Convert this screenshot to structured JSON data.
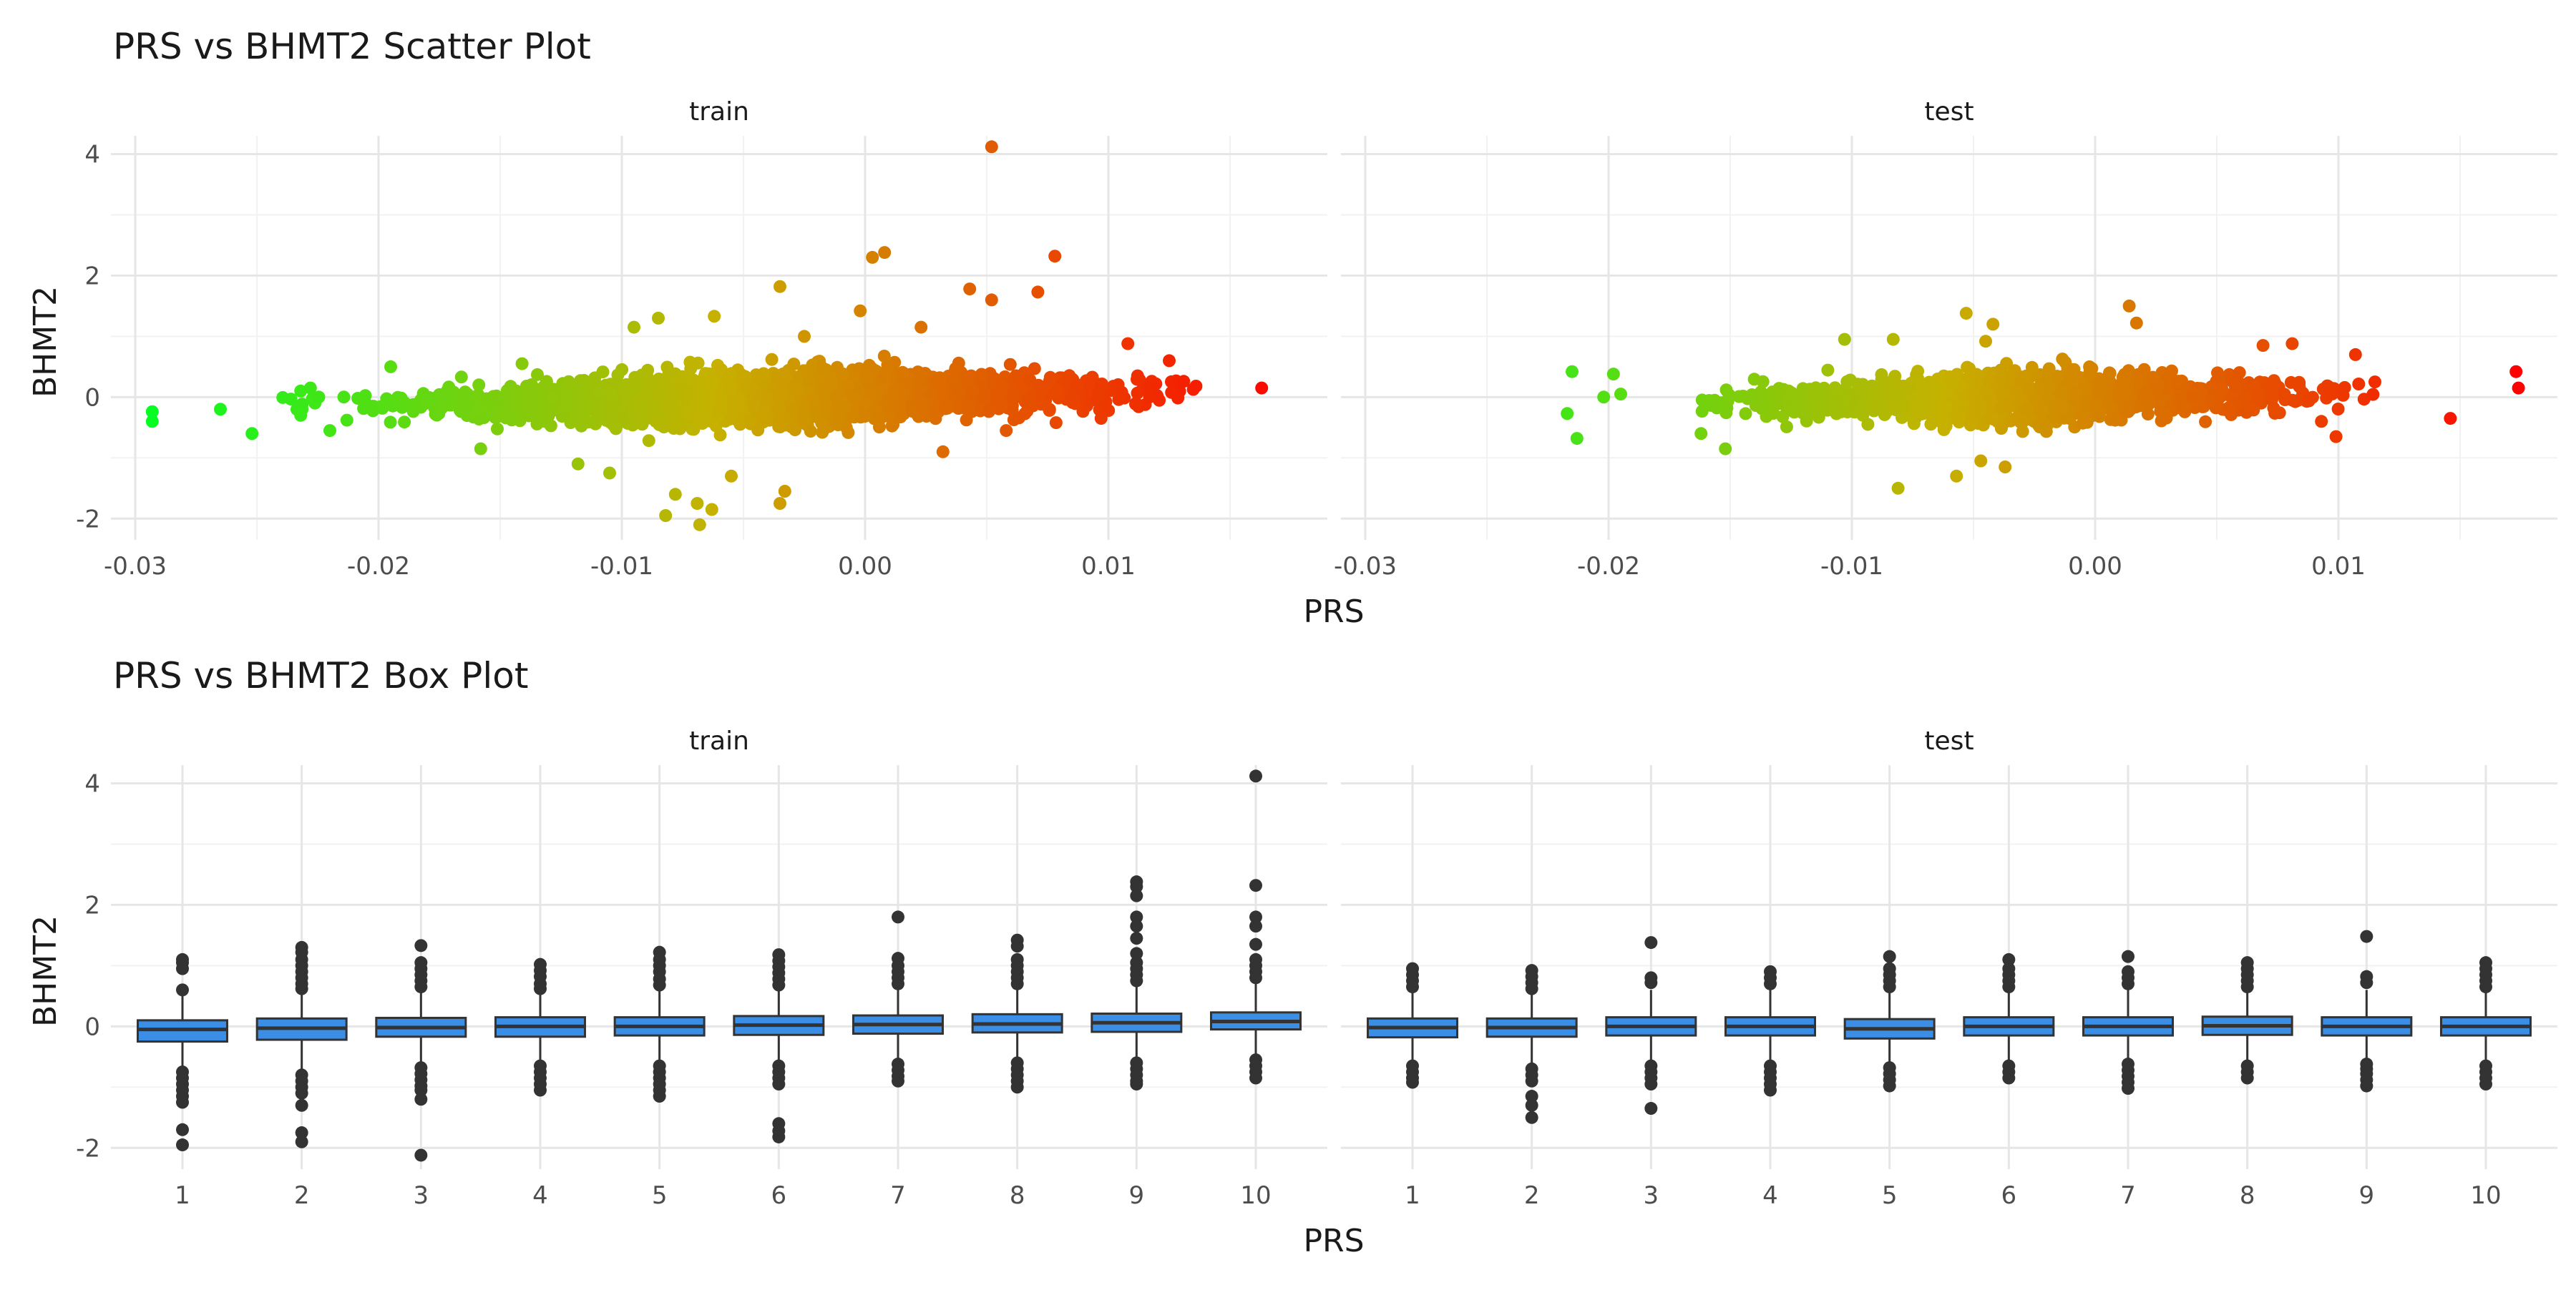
{
  "chart_data": [
    {
      "type": "scatter",
      "title": "PRS vs BHMT2 Scatter Plot",
      "xlabel": "PRS",
      "ylabel": "BHMT2",
      "facets": [
        "train",
        "test"
      ],
      "xlim": [
        -0.031,
        0.019
      ],
      "ylim": [
        -2.35,
        4.3
      ],
      "x_ticks": [
        -0.03,
        -0.02,
        -0.01,
        0.0,
        0.01
      ],
      "x_tick_labels": [
        "-0.03",
        "-0.02",
        "-0.01",
        "0.00",
        "0.01"
      ],
      "y_ticks": [
        -2,
        0,
        2,
        4
      ],
      "y_tick_labels": [
        "-2",
        "0",
        "2",
        "4"
      ],
      "grid": true,
      "color_scale": {
        "low": "#00ff22",
        "mid": "#c6b100",
        "high": "#ff0000",
        "range": [
          -0.03,
          0.0175
        ]
      },
      "panels": [
        {
          "facet": "train",
          "core": {
            "n": 2600,
            "x_min": -0.024,
            "x_max": 0.0135,
            "x_mean": -0.004,
            "x_sd": 0.0065,
            "y_sd": 0.22
          },
          "points": [
            [
              -0.0293,
              -0.24
            ],
            [
              -0.0293,
              -0.4
            ],
            [
              -0.0265,
              -0.2
            ],
            [
              -0.0252,
              -0.6
            ],
            [
              0.0163,
              0.15
            ],
            [
              0.0136,
              0.18
            ],
            [
              0.0125,
              0.6
            ],
            [
              0.0108,
              0.88
            ],
            [
              0.0052,
              4.12
            ],
            [
              0.0008,
              2.38
            ],
            [
              0.0003,
              2.3
            ],
            [
              0.0078,
              2.32
            ],
            [
              0.0043,
              1.78
            ],
            [
              0.0052,
              1.6
            ],
            [
              0.0071,
              1.73
            ],
            [
              -0.0002,
              1.42
            ],
            [
              -0.0035,
              1.82
            ],
            [
              0.0023,
              1.15
            ],
            [
              -0.0085,
              1.3
            ],
            [
              -0.0095,
              1.15
            ],
            [
              -0.0062,
              1.33
            ],
            [
              -0.0078,
              -1.6
            ],
            [
              -0.0082,
              -1.95
            ],
            [
              -0.0068,
              -2.1
            ],
            [
              -0.0063,
              -1.85
            ],
            [
              -0.0069,
              -1.75
            ],
            [
              -0.0033,
              -1.55
            ],
            [
              -0.0035,
              -1.75
            ],
            [
              -0.0118,
              -1.1
            ],
            [
              -0.0105,
              -1.25
            ],
            [
              -0.0055,
              -1.3
            ],
            [
              0.0032,
              -0.9
            ],
            [
              0.0058,
              -0.55
            ],
            [
              -0.0158,
              -0.85
            ],
            [
              0.0097,
              -0.35
            ],
            [
              0.0112,
              0.35
            ],
            [
              -0.0195,
              0.5
            ],
            [
              -0.0141,
              0.55
            ],
            [
              -0.0025,
              1.0
            ],
            [
              -0.0232,
              0.1
            ],
            [
              -0.0232,
              -0.3
            ],
            [
              -0.022,
              -0.55
            ],
            [
              -0.0228,
              0.15
            ],
            [
              -0.0213,
              -0.38
            ]
          ]
        },
        {
          "facet": "test",
          "core": {
            "n": 1400,
            "x_min": -0.0165,
            "x_max": 0.0115,
            "x_mean": -0.003,
            "x_sd": 0.0052,
            "y_sd": 0.21
          },
          "points": [
            [
              0.0173,
              0.42
            ],
            [
              0.0174,
              0.15
            ],
            [
              0.0146,
              -0.35
            ],
            [
              0.0107,
              0.7
            ],
            [
              0.0099,
              -0.65
            ],
            [
              0.0069,
              0.85
            ],
            [
              0.0081,
              0.88
            ],
            [
              0.0014,
              1.5
            ],
            [
              0.0017,
              1.22
            ],
            [
              -0.0053,
              1.38
            ],
            [
              -0.0083,
              0.95
            ],
            [
              -0.0081,
              -1.5
            ],
            [
              -0.0057,
              -1.3
            ],
            [
              -0.0047,
              -1.05
            ],
            [
              -0.0037,
              -1.15
            ],
            [
              -0.0045,
              0.92
            ],
            [
              -0.0042,
              1.2
            ],
            [
              -0.0217,
              -0.27
            ],
            [
              -0.0213,
              -0.68
            ],
            [
              -0.0215,
              0.42
            ],
            [
              -0.0198,
              0.38
            ],
            [
              -0.0202,
              0.0
            ],
            [
              -0.0195,
              0.05
            ],
            [
              -0.0162,
              -0.6
            ],
            [
              -0.0152,
              -0.85
            ],
            [
              -0.0103,
              0.95
            ],
            [
              0.0093,
              -0.4
            ],
            [
              0.0115,
              0.25
            ]
          ]
        }
      ]
    },
    {
      "type": "box",
      "title": "PRS vs BHMT2 Box Plot",
      "xlabel": "PRS",
      "ylabel": "BHMT2",
      "facets": [
        "train",
        "test"
      ],
      "categories": [
        "1",
        "2",
        "3",
        "4",
        "5",
        "6",
        "7",
        "8",
        "9",
        "10"
      ],
      "ylim": [
        -2.35,
        4.3
      ],
      "y_ticks": [
        -2,
        0,
        2,
        4
      ],
      "y_tick_labels": [
        "-2",
        "0",
        "2",
        "4"
      ],
      "grid": true,
      "fill": "#3a8ee6",
      "panels": [
        {
          "facet": "train",
          "boxes": [
            {
              "q1": -0.25,
              "median": -0.05,
              "q3": 0.1,
              "whisker_low": -0.72,
              "whisker_high": 0.55,
              "outliers": [
                1.1,
                1.05,
                0.95,
                0.6,
                -0.75,
                -0.85,
                -0.95,
                -1.05,
                -1.15,
                -1.25,
                -1.7,
                -1.95
              ]
            },
            {
              "q1": -0.22,
              "median": -0.03,
              "q3": 0.13,
              "whisker_low": -0.75,
              "whisker_high": 0.55,
              "outliers": [
                1.3,
                1.22,
                1.1,
                1.0,
                0.9,
                0.8,
                0.7,
                0.62,
                -0.8,
                -0.9,
                -1.0,
                -1.1,
                -1.3,
                -1.75,
                -1.9
              ]
            },
            {
              "q1": -0.17,
              "median": -0.02,
              "q3": 0.14,
              "whisker_low": -0.65,
              "whisker_high": 0.6,
              "outliers": [
                1.33,
                1.05,
                0.95,
                0.85,
                0.75,
                0.65,
                -0.68,
                -0.78,
                -0.88,
                -0.98,
                -1.05,
                -1.2,
                -2.12
              ]
            },
            {
              "q1": -0.17,
              "median": 0.0,
              "q3": 0.15,
              "whisker_low": -0.6,
              "whisker_high": 0.6,
              "outliers": [
                1.02,
                0.92,
                0.82,
                0.7,
                0.62,
                -0.65,
                -0.75,
                -0.85,
                -0.95,
                -1.05
              ]
            },
            {
              "q1": -0.15,
              "median": 0.0,
              "q3": 0.15,
              "whisker_low": -0.6,
              "whisker_high": 0.6,
              "outliers": [
                1.22,
                1.1,
                1.0,
                0.9,
                0.78,
                0.68,
                -0.65,
                -0.75,
                -0.85,
                -0.95,
                -1.05,
                -1.15
              ]
            },
            {
              "q1": -0.14,
              "median": 0.02,
              "q3": 0.17,
              "whisker_low": -0.6,
              "whisker_high": 0.62,
              "outliers": [
                1.18,
                1.08,
                0.98,
                0.88,
                0.78,
                0.68,
                -0.65,
                -0.75,
                -0.85,
                -0.95,
                -1.6,
                -1.72,
                -1.82
              ]
            },
            {
              "q1": -0.12,
              "median": 0.03,
              "q3": 0.18,
              "whisker_low": -0.58,
              "whisker_high": 0.62,
              "outliers": [
                1.8,
                1.12,
                1.0,
                0.9,
                0.8,
                0.7,
                -0.62,
                -0.72,
                -0.82,
                -0.9
              ]
            },
            {
              "q1": -0.1,
              "median": 0.04,
              "q3": 0.2,
              "whisker_low": -0.55,
              "whisker_high": 0.65,
              "outliers": [
                1.42,
                1.32,
                1.1,
                1.0,
                0.9,
                0.8,
                0.7,
                -0.6,
                -0.7,
                -0.8,
                -0.9,
                -1.0
              ]
            },
            {
              "q1": -0.09,
              "median": 0.06,
              "q3": 0.21,
              "whisker_low": -0.55,
              "whisker_high": 0.68,
              "outliers": [
                2.38,
                2.3,
                2.15,
                1.8,
                1.65,
                1.45,
                1.2,
                1.05,
                0.95,
                0.85,
                0.75,
                -0.6,
                -0.7,
                -0.8,
                -0.9,
                -0.95
              ]
            },
            {
              "q1": -0.05,
              "median": 0.08,
              "q3": 0.23,
              "whisker_low": -0.48,
              "whisker_high": 0.72,
              "outliers": [
                4.12,
                2.32,
                1.8,
                1.65,
                1.35,
                1.1,
                1.0,
                0.9,
                0.8,
                -0.55,
                -0.65,
                -0.75,
                -0.85
              ]
            }
          ]
        },
        {
          "facet": "test",
          "boxes": [
            {
              "q1": -0.18,
              "median": -0.02,
              "q3": 0.13,
              "whisker_low": -0.6,
              "whisker_high": 0.58,
              "outliers": [
                0.95,
                0.85,
                0.75,
                0.65,
                -0.65,
                -0.75,
                -0.85,
                -0.92
              ]
            },
            {
              "q1": -0.17,
              "median": -0.02,
              "q3": 0.13,
              "whisker_low": -0.62,
              "whisker_high": 0.55,
              "outliers": [
                0.92,
                0.82,
                0.72,
                0.62,
                -0.7,
                -0.8,
                -0.9,
                -1.15,
                -1.3,
                -1.5
              ]
            },
            {
              "q1": -0.15,
              "median": 0.0,
              "q3": 0.15,
              "whisker_low": -0.6,
              "whisker_high": 0.6,
              "outliers": [
                1.38,
                0.8,
                0.72,
                -0.65,
                -0.75,
                -0.85,
                -0.95,
                -1.35
              ]
            },
            {
              "q1": -0.15,
              "median": 0.0,
              "q3": 0.15,
              "whisker_low": -0.6,
              "whisker_high": 0.6,
              "outliers": [
                0.9,
                0.8,
                0.7,
                -0.65,
                -0.75,
                -0.85,
                -0.95,
                -1.05
              ]
            },
            {
              "q1": -0.2,
              "median": -0.04,
              "q3": 0.12,
              "whisker_low": -0.62,
              "whisker_high": 0.55,
              "outliers": [
                1.15,
                0.95,
                0.85,
                0.75,
                0.65,
                -0.68,
                -0.78,
                -0.88,
                -0.98
              ]
            },
            {
              "q1": -0.15,
              "median": 0.0,
              "q3": 0.15,
              "whisker_low": -0.6,
              "whisker_high": 0.6,
              "outliers": [
                1.1,
                0.95,
                0.85,
                0.75,
                0.65,
                -0.65,
                -0.75,
                -0.85
              ]
            },
            {
              "q1": -0.15,
              "median": 0.0,
              "q3": 0.15,
              "whisker_low": -0.58,
              "whisker_high": 0.6,
              "outliers": [
                1.15,
                0.9,
                0.8,
                0.7,
                -0.62,
                -0.72,
                -0.82,
                -0.92,
                -1.02
              ]
            },
            {
              "q1": -0.14,
              "median": 0.01,
              "q3": 0.16,
              "whisker_low": -0.56,
              "whisker_high": 0.6,
              "outliers": [
                1.05,
                0.95,
                0.85,
                0.75,
                0.65,
                -0.65,
                -0.75,
                -0.85
              ]
            },
            {
              "q1": -0.15,
              "median": 0.0,
              "q3": 0.15,
              "whisker_low": -0.6,
              "whisker_high": 0.6,
              "outliers": [
                1.48,
                0.82,
                0.72,
                -0.62,
                -0.7,
                -0.78,
                -0.88,
                -0.98
              ]
            },
            {
              "q1": -0.15,
              "median": 0.0,
              "q3": 0.15,
              "whisker_low": -0.6,
              "whisker_high": 0.6,
              "outliers": [
                1.05,
                0.95,
                0.85,
                0.75,
                0.65,
                -0.65,
                -0.75,
                -0.85,
                -0.95
              ]
            }
          ]
        }
      ]
    }
  ]
}
